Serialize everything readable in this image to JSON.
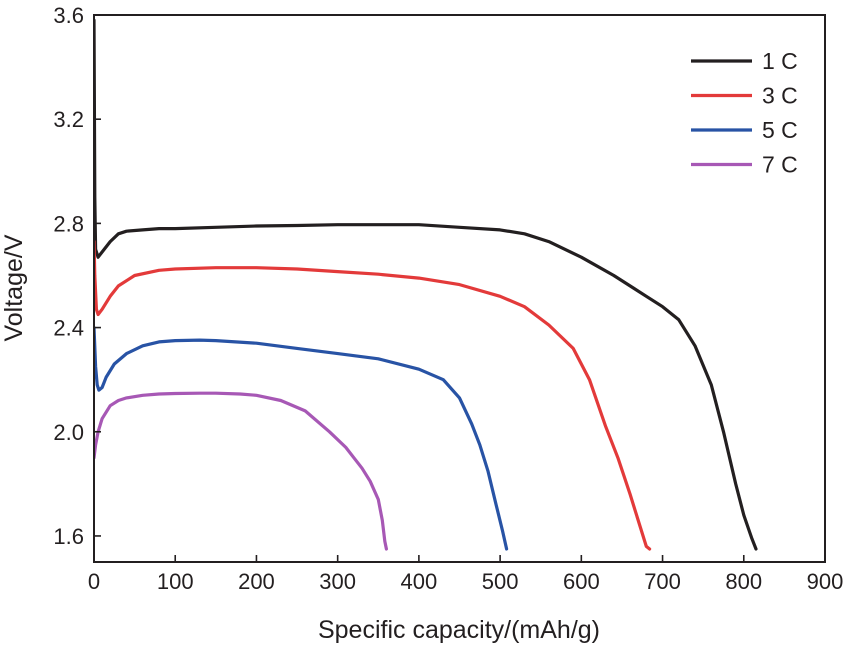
{
  "chart_data": {
    "type": "line",
    "title": "",
    "xlabel": "Specific capacity/(mAh/g)",
    "ylabel": "Voltage/V",
    "xlim": [
      0,
      900
    ],
    "ylim": [
      1.5,
      3.6
    ],
    "xticks": [
      0,
      100,
      200,
      300,
      400,
      500,
      600,
      700,
      800,
      900
    ],
    "yticks": [
      1.6,
      2.0,
      2.4,
      2.8,
      3.2,
      3.6
    ],
    "xtick_labels": [
      "0",
      "100",
      "200",
      "300",
      "400",
      "500",
      "600",
      "700",
      "800",
      "900"
    ],
    "ytick_labels": [
      "1.6",
      "2.0",
      "2.4",
      "2.8",
      "3.2",
      "3.6"
    ],
    "grid": false,
    "legend_position": "top-right",
    "series": [
      {
        "name": "1 C",
        "color": "#231f20",
        "points": [
          [
            0,
            3.58
          ],
          [
            1,
            2.9
          ],
          [
            2,
            2.7
          ],
          [
            5,
            2.67
          ],
          [
            10,
            2.69
          ],
          [
            20,
            2.73
          ],
          [
            30,
            2.76
          ],
          [
            40,
            2.77
          ],
          [
            60,
            2.775
          ],
          [
            80,
            2.78
          ],
          [
            100,
            2.78
          ],
          [
            150,
            2.785
          ],
          [
            200,
            2.79
          ],
          [
            250,
            2.792
          ],
          [
            300,
            2.795
          ],
          [
            350,
            2.795
          ],
          [
            400,
            2.795
          ],
          [
            450,
            2.785
          ],
          [
            500,
            2.775
          ],
          [
            530,
            2.76
          ],
          [
            560,
            2.73
          ],
          [
            600,
            2.67
          ],
          [
            640,
            2.6
          ],
          [
            680,
            2.52
          ],
          [
            700,
            2.48
          ],
          [
            720,
            2.43
          ],
          [
            740,
            2.33
          ],
          [
            760,
            2.18
          ],
          [
            775,
            2.0
          ],
          [
            790,
            1.8
          ],
          [
            800,
            1.68
          ],
          [
            810,
            1.59
          ],
          [
            815,
            1.55
          ]
        ]
      },
      {
        "name": "3 C",
        "color": "#e33a3a",
        "points": [
          [
            0,
            2.73
          ],
          [
            1,
            2.6
          ],
          [
            3,
            2.47
          ],
          [
            5,
            2.45
          ],
          [
            10,
            2.47
          ],
          [
            20,
            2.52
          ],
          [
            30,
            2.56
          ],
          [
            50,
            2.6
          ],
          [
            80,
            2.62
          ],
          [
            100,
            2.625
          ],
          [
            150,
            2.63
          ],
          [
            200,
            2.63
          ],
          [
            250,
            2.625
          ],
          [
            300,
            2.615
          ],
          [
            350,
            2.605
          ],
          [
            400,
            2.59
          ],
          [
            450,
            2.565
          ],
          [
            500,
            2.52
          ],
          [
            530,
            2.48
          ],
          [
            560,
            2.41
          ],
          [
            590,
            2.32
          ],
          [
            610,
            2.2
          ],
          [
            630,
            2.02
          ],
          [
            645,
            1.9
          ],
          [
            660,
            1.76
          ],
          [
            672,
            1.64
          ],
          [
            680,
            1.56
          ],
          [
            684,
            1.55
          ]
        ]
      },
      {
        "name": "5 C",
        "color": "#2853a5",
        "points": [
          [
            0,
            2.4
          ],
          [
            2,
            2.25
          ],
          [
            4,
            2.18
          ],
          [
            6,
            2.16
          ],
          [
            10,
            2.17
          ],
          [
            15,
            2.21
          ],
          [
            25,
            2.26
          ],
          [
            40,
            2.3
          ],
          [
            60,
            2.33
          ],
          [
            80,
            2.345
          ],
          [
            100,
            2.35
          ],
          [
            130,
            2.352
          ],
          [
            150,
            2.35
          ],
          [
            200,
            2.34
          ],
          [
            250,
            2.32
          ],
          [
            300,
            2.3
          ],
          [
            350,
            2.28
          ],
          [
            400,
            2.24
          ],
          [
            430,
            2.2
          ],
          [
            450,
            2.13
          ],
          [
            465,
            2.03
          ],
          [
            475,
            1.95
          ],
          [
            485,
            1.85
          ],
          [
            495,
            1.72
          ],
          [
            503,
            1.62
          ],
          [
            508,
            1.55
          ]
        ]
      },
      {
        "name": "7 C",
        "color": "#a758b5",
        "points": [
          [
            0,
            1.9
          ],
          [
            2,
            1.95
          ],
          [
            5,
            2.0
          ],
          [
            10,
            2.05
          ],
          [
            20,
            2.1
          ],
          [
            30,
            2.12
          ],
          [
            40,
            2.13
          ],
          [
            60,
            2.14
          ],
          [
            80,
            2.145
          ],
          [
            100,
            2.147
          ],
          [
            130,
            2.148
          ],
          [
            150,
            2.148
          ],
          [
            180,
            2.145
          ],
          [
            200,
            2.14
          ],
          [
            230,
            2.12
          ],
          [
            260,
            2.08
          ],
          [
            290,
            2.0
          ],
          [
            310,
            1.94
          ],
          [
            320,
            1.9
          ],
          [
            330,
            1.86
          ],
          [
            340,
            1.81
          ],
          [
            350,
            1.74
          ],
          [
            355,
            1.66
          ],
          [
            358,
            1.58
          ],
          [
            360,
            1.55
          ]
        ]
      }
    ]
  }
}
